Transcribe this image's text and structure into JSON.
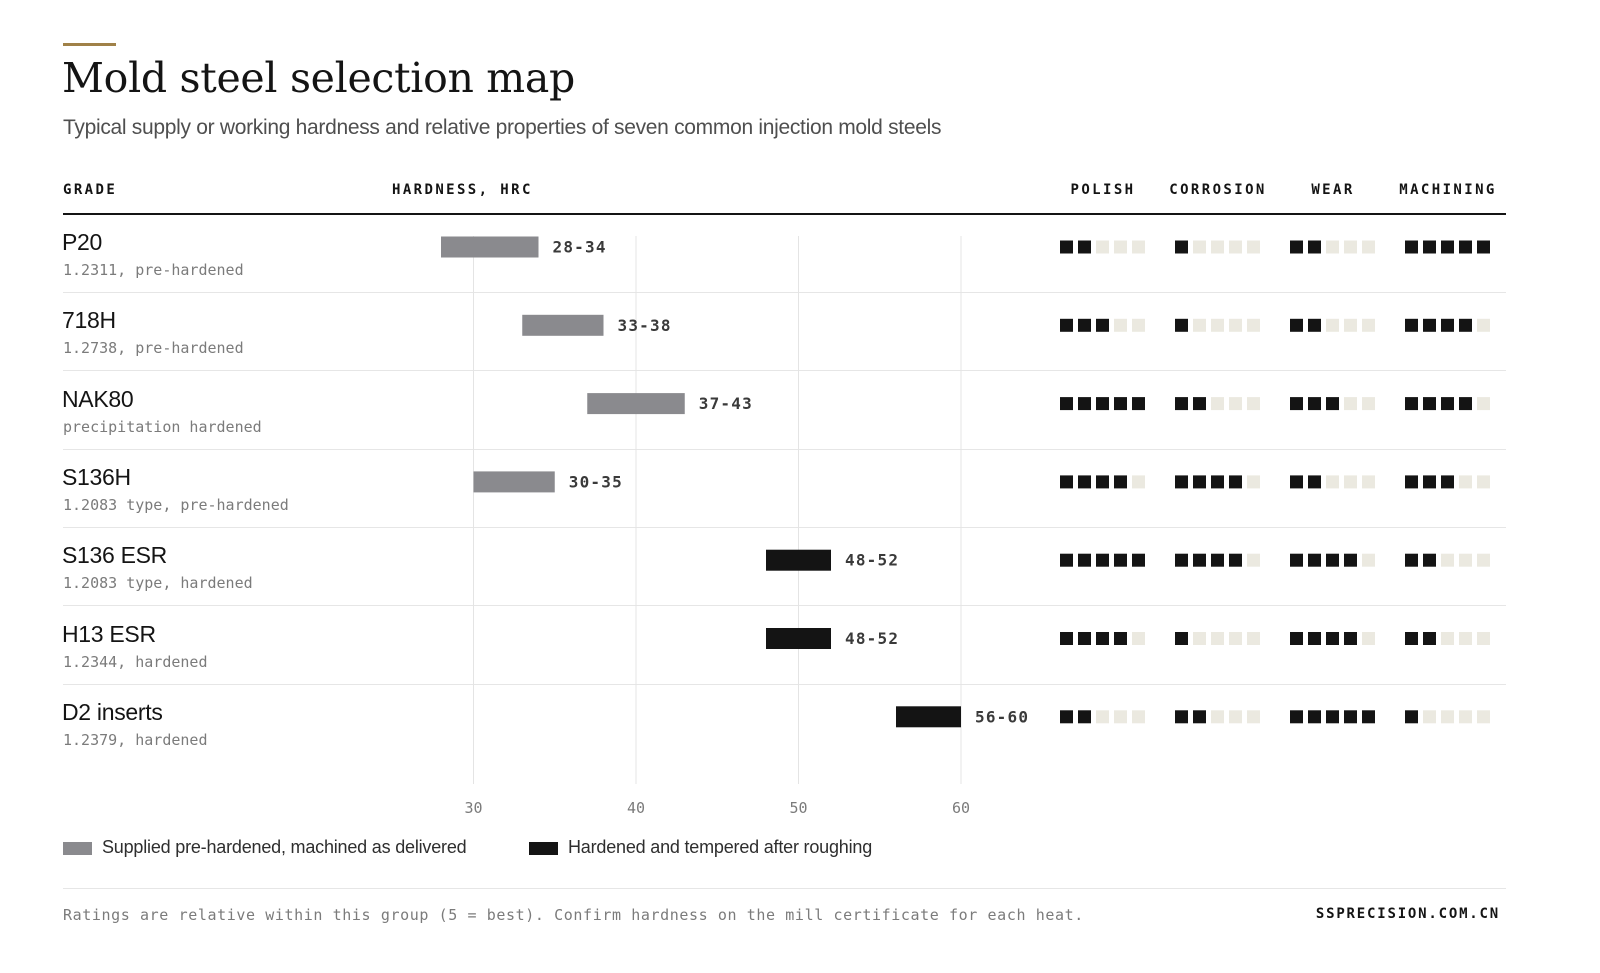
{
  "title": "Mold steel selection map",
  "subtitle": "Typical supply or working hardness and relative properties of seven common injection mold steels",
  "headers": {
    "grade": "GRADE",
    "hardness": "HARDNESS, HRC",
    "polish": "POLISH",
    "corrosion": "CORROSION",
    "wear": "WEAR",
    "machining": "MACHINING"
  },
  "legend": {
    "prehardened": "Supplied pre-hardened, machined as delivered",
    "hardened": "Hardened and tempered after roughing"
  },
  "footer": {
    "note": "Ratings are relative within this group (5 = best). Confirm hardness on the mill certificate for each heat.",
    "site": "SSPRECISION.COM.CN"
  },
  "colors": {
    "prehardened": "#8a8a8e",
    "hardened": "#141414",
    "rating_on": "#141414",
    "rating_off": "#ebe9e0",
    "accent": "#a08148"
  },
  "grades": [
    {
      "name": "P20",
      "note": "1.2311, pre-hardened"
    },
    {
      "name": "718H",
      "note": "1.2738, pre-hardened"
    },
    {
      "name": "NAK80",
      "note": "precipitation hardened"
    },
    {
      "name": "S136H",
      "note": "1.2083 type, pre-hardened"
    },
    {
      "name": "S136 ESR",
      "note": "1.2083 type, hardened"
    },
    {
      "name": "H13 ESR",
      "note": "1.2344, hardened"
    },
    {
      "name": "D2 inserts",
      "note": "1.2379, hardened"
    }
  ],
  "chart_data": {
    "type": "bar",
    "orientation": "horizontal-range",
    "title": "Mold steel selection map",
    "xlabel": "HARDNESS, HRC",
    "xlim": [
      25,
      66
    ],
    "xticks": [
      30,
      40,
      50,
      60
    ],
    "grid": "vertical",
    "categories": [
      "P20",
      "718H",
      "NAK80",
      "S136H",
      "S136 ESR",
      "H13 ESR",
      "D2 inserts"
    ],
    "series": [
      {
        "name": "Supplied pre-hardened, machined as delivered",
        "ranges": [
          {
            "category": "P20",
            "low": 28,
            "high": 34,
            "label": "28-34"
          },
          {
            "category": "718H",
            "low": 33,
            "high": 38,
            "label": "33-38"
          },
          {
            "category": "NAK80",
            "low": 37,
            "high": 43,
            "label": "37-43"
          },
          {
            "category": "S136H",
            "low": 30,
            "high": 35,
            "label": "30-35"
          }
        ]
      },
      {
        "name": "Hardened and tempered after roughing",
        "ranges": [
          {
            "category": "S136 ESR",
            "low": 48,
            "high": 52,
            "label": "48-52"
          },
          {
            "category": "H13 ESR",
            "low": 48,
            "high": 52,
            "label": "48-52"
          },
          {
            "category": "D2 inserts",
            "low": 56,
            "high": 60,
            "label": "56-60"
          }
        ]
      }
    ],
    "ratings": {
      "scale_max": 5,
      "columns": [
        "POLISH",
        "CORROSION",
        "WEAR",
        "MACHINING"
      ],
      "values": {
        "P20": [
          2,
          1,
          2,
          5
        ],
        "718H": [
          3,
          1,
          2,
          4
        ],
        "NAK80": [
          5,
          2,
          3,
          4
        ],
        "S136H": [
          4,
          4,
          2,
          3
        ],
        "S136 ESR": [
          5,
          4,
          4,
          2
        ],
        "H13 ESR": [
          4,
          1,
          4,
          2
        ],
        "D2 inserts": [
          2,
          2,
          5,
          1
        ]
      }
    }
  }
}
